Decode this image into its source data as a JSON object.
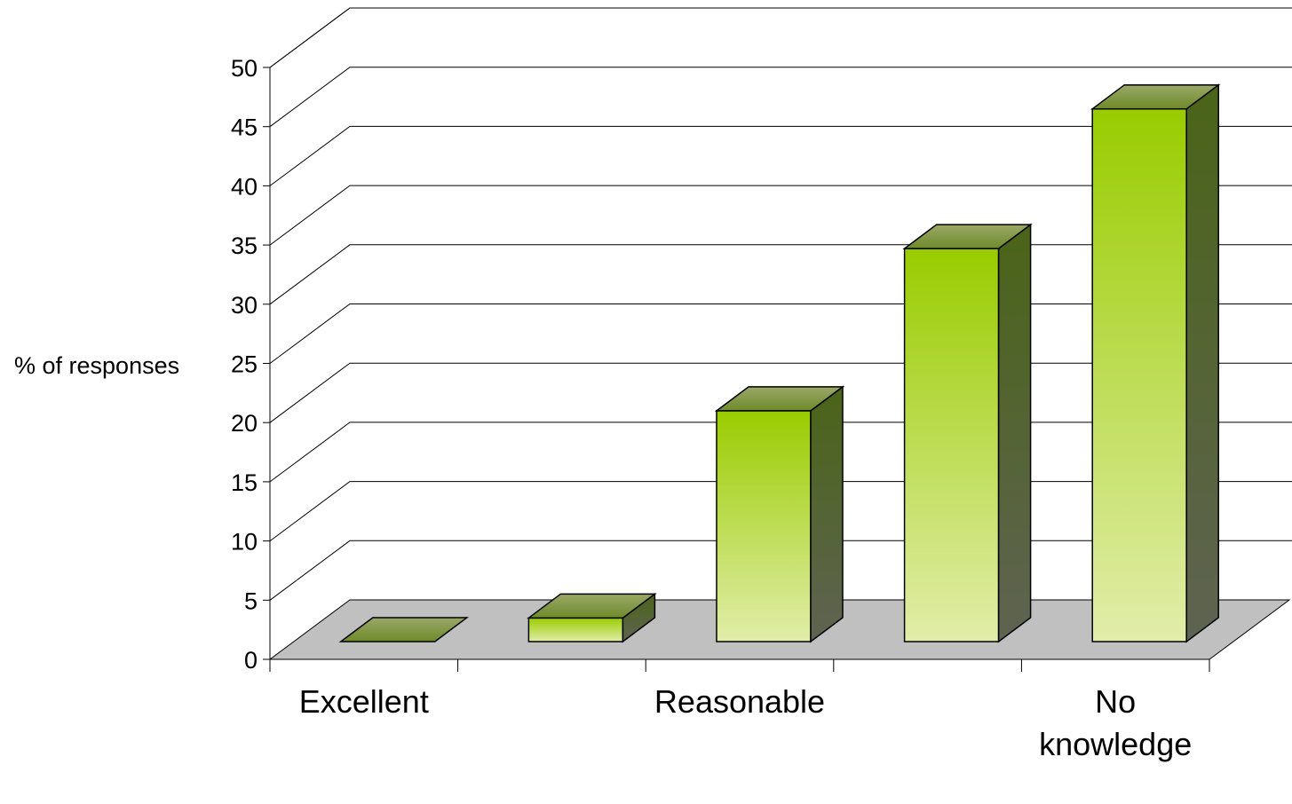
{
  "chart_data": {
    "type": "bar",
    "categories": [
      "Excellent",
      "",
      "Reasonable",
      "",
      "No knowledge"
    ],
    "category_labels": [
      [
        "Excellent"
      ],
      [],
      [
        "Reasonable"
      ],
      [],
      [
        "No",
        "knowledge"
      ]
    ],
    "values": [
      0,
      2,
      19.5,
      33.2,
      45
    ],
    "ylabel": "% of responses",
    "ylim": [
      0,
      50
    ],
    "yticks": [
      "0",
      "5",
      "10",
      "15",
      "20",
      "25",
      "30",
      "35",
      "40",
      "45",
      "50"
    ],
    "grid": true,
    "style": "3d-column"
  },
  "colors": {
    "floor": "#c0c0c0",
    "bar_top_light": "#9aa868",
    "bar_top_dark": "#6f8a2a",
    "bar_front_top": "#99cc00",
    "bar_front_bottom": "#e2edaa",
    "bar_side_top": "#4a6418",
    "bar_side_bottom": "#5f6352",
    "gridline": "#000000"
  }
}
